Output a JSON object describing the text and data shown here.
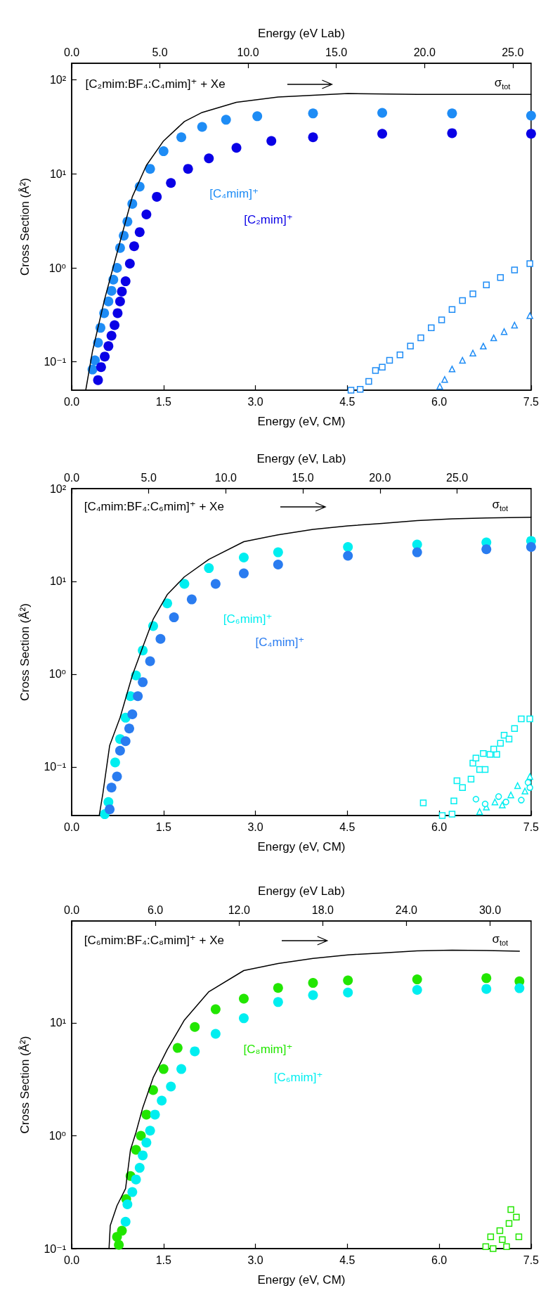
{
  "chart_data": [
    {
      "type": "scatter",
      "title": "[C₂mim:BF₄:C₄mim]⁺ + Xe",
      "xlabel": "Energy (eV, CM)",
      "x2label": "Energy (eV Lab)",
      "ylabel": "Cross Section (Å²)",
      "log": "y",
      "xlim": [
        0,
        7.5
      ],
      "xticks": [
        {
          "value": 0,
          "label": "0.0"
        },
        1.5,
        {
          "value": 3,
          "label": "3.0"
        },
        4.5,
        {
          "value": 6,
          "label": "6.0"
        },
        7.5
      ],
      "x2lim": [
        0,
        26.04
      ],
      "x2ticks": [
        {
          "value": 0,
          "label": "0.0"
        },
        {
          "value": 5,
          "label": "5.0"
        },
        {
          "value": 10,
          "label": "10.0"
        },
        {
          "value": 15,
          "label": "15.0"
        },
        {
          "value": 20,
          "label": "20.0"
        },
        {
          "value": 25,
          "label": "25.0"
        }
      ],
      "ylim": [
        0.05,
        150
      ],
      "yticks": [
        {
          "value": 0.1,
          "label": "10⁻¹"
        },
        {
          "value": 1,
          "label": "10⁰"
        },
        {
          "value": 10,
          "label": "10¹"
        },
        {
          "value": 100,
          "label": "10²"
        }
      ],
      "series": [
        {
          "name": "σ$_{tot}$",
          "type": "line",
          "marker": "none",
          "color": "#000000",
          "x": [
            0.23,
            0.34,
            0.54,
            0.77,
            0.99,
            1.22,
            1.5,
            1.84,
            2.13,
            2.69,
            3.37,
            4.51,
            5.64,
            7.5
          ],
          "values": [
            0.05,
            0.13,
            0.47,
            1.7,
            5.7,
            12.3,
            22.4,
            36,
            45,
            57.6,
            65.6,
            71.5,
            70,
            70
          ]
        },
        {
          "name": "[C₄mim]⁺",
          "marker": "circle",
          "color": "#1e8cf5",
          "x": [
            0.34,
            0.38,
            0.43,
            0.47,
            0.53,
            0.6,
            0.65,
            0.68,
            0.74,
            0.79,
            0.85,
            0.91,
            0.99,
            1.11,
            1.28,
            1.5,
            1.79,
            2.13,
            2.52,
            3.03,
            3.94,
            5.07,
            6.21,
            7.5
          ],
          "values": [
            0.083,
            0.104,
            0.16,
            0.23,
            0.33,
            0.44,
            0.57,
            0.75,
            1.0,
            1.63,
            2.2,
            3.1,
            4.8,
            7.3,
            11.3,
            17.4,
            24.5,
            31.6,
            37.6,
            41,
            43.9,
            44.6,
            43.9,
            41.6
          ]
        },
        {
          "name": "[C₂mim]⁺",
          "marker": "circle",
          "color": "#0a00e6",
          "x": [
            0.43,
            0.48,
            0.54,
            0.6,
            0.65,
            0.7,
            0.75,
            0.79,
            0.82,
            0.88,
            0.95,
            1.02,
            1.11,
            1.22,
            1.39,
            1.62,
            1.9,
            2.24,
            2.69,
            3.26,
            3.94,
            5.07,
            6.21,
            7.5
          ],
          "values": [
            0.064,
            0.088,
            0.114,
            0.147,
            0.19,
            0.246,
            0.33,
            0.44,
            0.56,
            0.72,
            1.11,
            1.7,
            2.4,
            3.7,
            5.7,
            8.0,
            11.3,
            14.6,
            18.9,
            22.4,
            24.5,
            26.7,
            27.1,
            26.7
          ]
        },
        {
          "marker": "square",
          "color": "#1e8cf5",
          "x": [
            4.56,
            4.71,
            4.85,
            4.96,
            5.07,
            5.19,
            5.36,
            5.53,
            5.7,
            5.87,
            6.04,
            6.21,
            6.38,
            6.55,
            6.77,
            7.0,
            7.23,
            7.48
          ],
          "values": [
            0.05,
            0.051,
            0.062,
            0.081,
            0.088,
            0.104,
            0.119,
            0.147,
            0.18,
            0.23,
            0.28,
            0.36,
            0.45,
            0.53,
            0.66,
            0.79,
            0.95,
            1.11
          ]
        },
        {
          "marker": "triangle",
          "color": "#1e8cf5",
          "x": [
            6.01,
            6.09,
            6.21,
            6.38,
            6.55,
            6.72,
            6.89,
            7.06,
            7.23,
            7.48
          ],
          "values": [
            0.055,
            0.065,
            0.084,
            0.104,
            0.124,
            0.147,
            0.18,
            0.21,
            0.246,
            0.31
          ]
        }
      ]
    },
    {
      "type": "scatter",
      "title": "[C₄mim:BF₄:C₆mim]⁺ + Xe",
      "xlabel": "Energy (eV, CM)",
      "x2label": "Energy (eV, Lab)",
      "ylabel": "Cross Section (Å²)",
      "log": "y",
      "xlim": [
        0,
        7.5
      ],
      "xticks": [
        {
          "value": 0,
          "label": "0.0"
        },
        1.5,
        {
          "value": 3,
          "label": "3.0"
        },
        4.5,
        {
          "value": 6,
          "label": "6.0"
        },
        7.5
      ],
      "x2lim": [
        0,
        29.8
      ],
      "x2ticks": [
        {
          "value": 0,
          "label": "0.0"
        },
        {
          "value": 5,
          "label": "5.0"
        },
        {
          "value": 10,
          "label": "10.0"
        },
        {
          "value": 15,
          "label": "15.0"
        },
        {
          "value": 20,
          "label": "20.0"
        },
        {
          "value": 25,
          "label": "25.0"
        }
      ],
      "ylim": [
        0.03,
        100
      ],
      "yticks": [
        {
          "value": 0.1,
          "label": "10⁻¹"
        },
        {
          "value": 1,
          "label": "10⁰"
        },
        {
          "value": 10,
          "label": "10¹"
        },
        {
          "value": 100,
          "label": "10²"
        }
      ],
      "series": [
        {
          "name": "σ$_{tot}$",
          "type": "line",
          "marker": "none",
          "color": "#000000",
          "x": [
            0.45,
            0.51,
            0.62,
            0.79,
            0.99,
            1.16,
            1.33,
            1.56,
            1.84,
            2.24,
            2.81,
            3.37,
            3.94,
            4.51,
            5.07,
            5.64,
            6.21,
            6.77,
            7.5
          ],
          "values": [
            0.03,
            0.052,
            0.17,
            0.34,
            0.97,
            1.96,
            3.9,
            7.2,
            11.2,
            17.3,
            26.8,
            31.8,
            36.3,
            39.7,
            42.1,
            45.3,
            47.2,
            48.3,
            49.2
          ]
        },
        {
          "name": "[C₆mim]⁺",
          "marker": "circle",
          "color": "#00eef0",
          "x": [
            0.54,
            0.6,
            0.71,
            0.79,
            0.88,
            0.96,
            1.05,
            1.16,
            1.33,
            1.56,
            1.84,
            2.24,
            2.81,
            3.37,
            4.51,
            5.64,
            6.77,
            7.5
          ],
          "values": [
            0.031,
            0.042,
            0.112,
            0.2,
            0.34,
            0.58,
            0.97,
            1.8,
            3.3,
            5.8,
            9.4,
            13.9,
            18.1,
            20.6,
            23.5,
            25,
            26.3,
            27.3
          ]
        },
        {
          "name": "[C₄mim]⁺",
          "marker": "circle",
          "color": "#2a7cf0",
          "x": [
            0.62,
            0.65,
            0.74,
            0.79,
            0.88,
            0.94,
            0.99,
            1.08,
            1.16,
            1.28,
            1.45,
            1.67,
            1.96,
            2.35,
            2.81,
            3.37,
            4.51,
            5.64,
            6.77,
            7.5
          ],
          "values": [
            0.035,
            0.06,
            0.079,
            0.15,
            0.19,
            0.26,
            0.37,
            0.58,
            0.82,
            1.38,
            2.4,
            4.1,
            6.4,
            9.4,
            12.2,
            15.2,
            18.9,
            20.6,
            22.2,
            23.5
          ]
        },
        {
          "marker": "square",
          "color": "#00eef0",
          "x": [
            5.74,
            6.05,
            6.21,
            6.24,
            6.29,
            6.38,
            6.52,
            6.55,
            6.6,
            6.66,
            6.75,
            6.72,
            6.83,
            6.94,
            6.89,
            7.0,
            7.06,
            7.14,
            7.23,
            7.34,
            7.48
          ],
          "values": [
            0.041,
            0.03,
            0.031,
            0.043,
            0.071,
            0.06,
            0.074,
            0.11,
            0.125,
            0.094,
            0.094,
            0.14,
            0.137,
            0.137,
            0.156,
            0.18,
            0.22,
            0.2,
            0.26,
            0.33,
            0.33
          ]
        },
        {
          "marker": "triangle",
          "color": "#00eef0",
          "x": [
            6.66,
            6.77,
            6.91,
            7.03,
            7.17,
            7.28,
            7.4,
            7.48
          ],
          "values": [
            0.033,
            0.037,
            0.042,
            0.039,
            0.05,
            0.063,
            0.055,
            0.079
          ]
        },
        {
          "marker": "circle",
          "color": "#00eef0",
          "x": [
            6.6,
            6.75,
            6.97,
            7.09,
            7.34,
            7.45,
            7.48
          ],
          "values": [
            0.045,
            0.04,
            0.048,
            0.042,
            0.044,
            0.068,
            0.06
          ]
        }
      ]
    },
    {
      "type": "scatter",
      "title": "[C₆mim:BF₄:C₈mim]⁺ + Xe",
      "xlabel": "Energy (eV, CM)",
      "x2label": "Energy (eV Lab)",
      "ylabel": "Cross Section (Å²)",
      "log": "y",
      "xlim": [
        0,
        7.5
      ],
      "xticks": [
        {
          "value": 0,
          "label": "0.0"
        },
        1.5,
        {
          "value": 3,
          "label": "3.0"
        },
        4.5,
        {
          "value": 6,
          "label": "6.0"
        },
        7.5
      ],
      "x2lim": [
        0,
        32.94
      ],
      "x2ticks": [
        {
          "value": 0,
          "label": "0.0"
        },
        {
          "value": 6,
          "label": "6.0"
        },
        {
          "value": 12,
          "label": "12.0"
        },
        {
          "value": 18,
          "label": "18.0"
        },
        {
          "value": 24,
          "label": "24.0"
        },
        {
          "value": 30,
          "label": "30.0"
        }
      ],
      "ylim": [
        0.1,
        80
      ],
      "yticks": [
        {
          "value": 0.1,
          "label": "10⁻¹"
        },
        {
          "value": 1,
          "label": "10⁰"
        },
        {
          "value": 10,
          "label": "10¹"
        }
      ],
      "series": [
        {
          "name": "σ$_{tot}$",
          "type": "line",
          "marker": "none",
          "color": "#000000",
          "x": [
            0.61,
            0.63,
            0.74,
            0.88,
            0.96,
            1.05,
            1.16,
            1.33,
            1.56,
            1.84,
            2.24,
            2.81,
            3.37,
            3.94,
            4.51,
            5.07,
            5.64,
            6.21,
            6.77,
            7.31
          ],
          "values": [
            0.1,
            0.16,
            0.24,
            0.34,
            0.75,
            1.07,
            1.77,
            3.27,
            5.8,
            10.6,
            18.9,
            29.1,
            33.6,
            37.3,
            40.1,
            41.6,
            43.5,
            44.1,
            43.8,
            43.2
          ]
        },
        {
          "name": "[C₈mim]⁺",
          "marker": "circle",
          "color": "#22e600",
          "x": [
            0.74,
            0.77,
            0.82,
            0.89,
            0.96,
            1.05,
            1.13,
            1.22,
            1.33,
            1.5,
            1.73,
            2.01,
            2.35,
            2.81,
            3.37,
            3.94,
            4.51,
            5.64,
            6.77,
            7.31
          ],
          "values": [
            0.127,
            0.108,
            0.144,
            0.275,
            0.44,
            0.75,
            1.0,
            1.54,
            2.54,
            3.9,
            6.0,
            9.2,
            13.2,
            16.4,
            20.4,
            22.6,
            23.8,
            24.3,
            24.9,
            23.4
          ]
        },
        {
          "name": "[C₆mim]⁺",
          "marker": "circle",
          "color": "#00eef0",
          "x": [
            0.88,
            0.91,
            0.99,
            1.05,
            1.11,
            1.16,
            1.22,
            1.28,
            1.36,
            1.47,
            1.62,
            1.79,
            2.01,
            2.35,
            2.81,
            3.37,
            3.94,
            4.51,
            5.64,
            6.77,
            7.31
          ],
          "values": [
            0.173,
            0.247,
            0.317,
            0.41,
            0.52,
            0.67,
            0.87,
            1.11,
            1.54,
            2.05,
            2.73,
            3.9,
            5.6,
            8.0,
            11.0,
            15.3,
            17.6,
            18.6,
            19.6,
            20.0,
            20.3
          ]
        },
        {
          "marker": "square",
          "color": "#22e600",
          "x": [
            6.76,
            6.84,
            6.88,
            6.99,
            7.03,
            7.1,
            7.14,
            7.17,
            7.26,
            7.3
          ],
          "values": [
            0.104,
            0.127,
            0.1,
            0.144,
            0.12,
            0.104,
            0.167,
            0.222,
            0.19,
            0.127
          ]
        }
      ]
    }
  ]
}
